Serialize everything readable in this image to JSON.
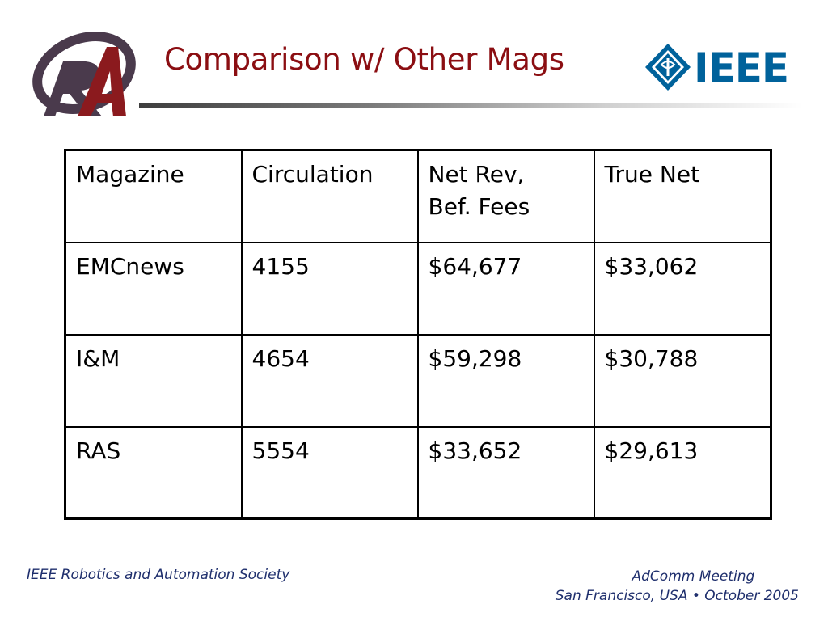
{
  "slide": {
    "title": "Comparison w/ Other Mags"
  },
  "logos": {
    "left": "ras-logo",
    "right_text": "IEEE",
    "right_icon": "ieee-diamond-icon"
  },
  "table": {
    "headers": [
      [
        "Magazine"
      ],
      [
        "Circulation"
      ],
      [
        "Net Rev,",
        "Bef. Fees"
      ],
      [
        "True Net"
      ]
    ],
    "rows": [
      [
        "EMCnews",
        "4155",
        "$64,677",
        "$33,062"
      ],
      [
        "I&M",
        "4654",
        "$59,298",
        "$30,788"
      ],
      [
        "RAS",
        "5554",
        "$33,652",
        "$29,613"
      ]
    ]
  },
  "footer": {
    "left": "IEEE Robotics and Automation Society",
    "right_line1": "AdComm Meeting",
    "right_line2": "San Francisco, USA • October  2005"
  },
  "colors": {
    "title": "#8b0e12",
    "footer": "#1f2f6d",
    "ieee_blue": "#00629b",
    "ras_gray": "#4a3a4c",
    "ras_red": "#8b1a1e"
  }
}
